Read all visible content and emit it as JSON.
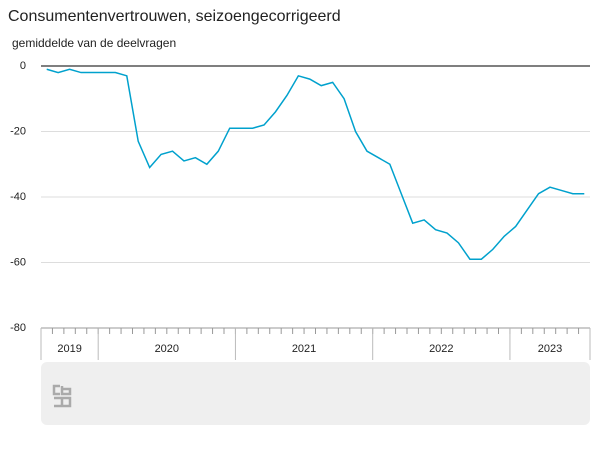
{
  "chart_data": {
    "type": "line",
    "title": "Consumentenvertrouwen, seizoengecorrigeerd",
    "subtitle": "gemiddelde van de deelvragen",
    "x": [
      "2019-08",
      "2019-09",
      "2019-10",
      "2019-11",
      "2019-12",
      "2020-01",
      "2020-02",
      "2020-03",
      "2020-04",
      "2020-05",
      "2020-06",
      "2020-07",
      "2020-08",
      "2020-09",
      "2020-10",
      "2020-11",
      "2020-12",
      "2021-01",
      "2021-02",
      "2021-03",
      "2021-04",
      "2021-05",
      "2021-06",
      "2021-07",
      "2021-08",
      "2021-09",
      "2021-10",
      "2021-11",
      "2021-12",
      "2022-01",
      "2022-02",
      "2022-03",
      "2022-04",
      "2022-05",
      "2022-06",
      "2022-07",
      "2022-08",
      "2022-09",
      "2022-10",
      "2022-11",
      "2022-12",
      "2023-01",
      "2023-02",
      "2023-03",
      "2023-04",
      "2023-05",
      "2023-06",
      "2023-07"
    ],
    "x_group_labels": [
      "2019",
      "2020",
      "2021",
      "2022",
      "2023"
    ],
    "series": [
      {
        "name": "Consumentenvertrouwen",
        "color": "#00a1cd",
        "values": [
          -1,
          -2,
          -1,
          -2,
          -2,
          -2,
          -2,
          -3,
          -23,
          -31,
          -27,
          -26,
          -29,
          -28,
          -30,
          -26,
          -19,
          -19,
          -19,
          -18,
          -14,
          -9,
          -3,
          -4,
          -6,
          -5,
          -10,
          -20,
          -26,
          -28,
          -30,
          -39,
          -48,
          -47,
          -50,
          -51,
          -54,
          -59,
          -59,
          -56,
          -52,
          -49,
          -44,
          -39,
          -37,
          -38,
          -39,
          -39
        ]
      }
    ],
    "ylim": [
      -80,
      0
    ],
    "yticks": [
      0,
      -20,
      -40,
      -60,
      -80
    ],
    "grid": true
  }
}
